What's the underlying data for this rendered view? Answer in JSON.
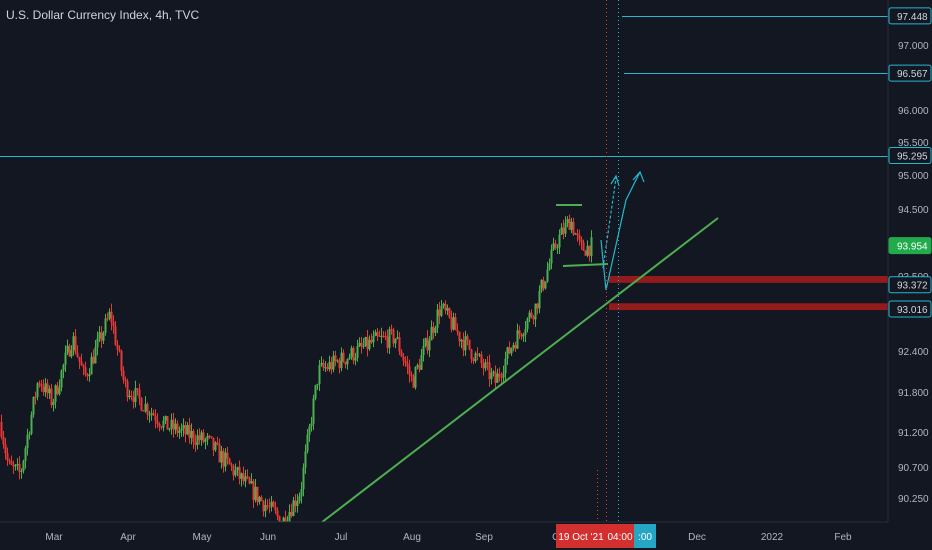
{
  "header": {
    "title": "U.S. Dollar Currency Index, 4h, TVC"
  },
  "colors": {
    "background": "#131722",
    "up": "#26a69a",
    "down": "#ef5350",
    "candle_up": "#4caf50",
    "candle_down": "#e53935",
    "drawing_cyan": "#22b8cf",
    "trendline_green": "#4caf50",
    "zone_red": "#b71c1c",
    "axis_text": "#b2b5be",
    "price_tag": "#089981"
  },
  "chart_data": {
    "type": "candlestick",
    "title": "U.S. Dollar Currency Index, 4h, TVC",
    "y_ticks": [
      "97.000",
      "96.000",
      "95.500",
      "95.000",
      "94.500",
      "93.500",
      "92.400",
      "91.800",
      "91.200",
      "90.700",
      "90.250"
    ],
    "y_tick_values": [
      97.0,
      96.0,
      95.5,
      95.0,
      94.5,
      93.5,
      92.4,
      91.8,
      91.2,
      90.7,
      90.25
    ],
    "x_ticks": [
      "Mar",
      "Apr",
      "May",
      "Jun",
      "Jul",
      "Aug",
      "Sep",
      "O",
      "Dec",
      "2022",
      "Feb"
    ],
    "price_path": [
      {
        "m": "Feb",
        "p": 91.35
      },
      {
        "m": "Feb",
        "p": 90.7
      },
      {
        "m": "Mar",
        "p": 90.6
      },
      {
        "m": "Mar",
        "p": 92.0
      },
      {
        "m": "Mar",
        "p": 91.65
      },
      {
        "m": "Mar",
        "p": 92.6
      },
      {
        "m": "Mar",
        "p": 92.0
      },
      {
        "m": "Apr",
        "p": 92.95
      },
      {
        "m": "Apr",
        "p": 91.9
      },
      {
        "m": "Apr",
        "p": 91.3
      },
      {
        "m": "May",
        "p": 91.05
      },
      {
        "m": "May",
        "p": 90.6
      },
      {
        "m": "May",
        "p": 90.2
      },
      {
        "m": "Jun",
        "p": 89.9
      },
      {
        "m": "Jun",
        "p": 90.35
      },
      {
        "m": "Jun",
        "p": 92.1
      },
      {
        "m": "Jul",
        "p": 92.3
      },
      {
        "m": "Jul",
        "p": 92.55
      },
      {
        "m": "Jul",
        "p": 92.6
      },
      {
        "m": "Aug",
        "p": 91.95
      },
      {
        "m": "Aug",
        "p": 93.05
      },
      {
        "m": "Aug",
        "p": 92.6
      },
      {
        "m": "Sep",
        "p": 91.95
      },
      {
        "m": "Sep",
        "p": 92.5
      },
      {
        "m": "Sep",
        "p": 93.05
      },
      {
        "m": "O",
        "p": 94.0
      },
      {
        "m": "O",
        "p": 94.35
      },
      {
        "m": "O",
        "p": 93.9
      },
      {
        "m": "O",
        "p": 93.95
      }
    ],
    "horizontal_lines": [
      97.448,
      96.567,
      95.295
    ],
    "price_labels": [
      {
        "text": "97.448",
        "value": 97.448,
        "kind": "level"
      },
      {
        "text": "96.567",
        "value": 96.567,
        "kind": "level"
      },
      {
        "text": "95.295",
        "value": 95.295,
        "kind": "level"
      },
      {
        "text": "93.954",
        "value": 93.954,
        "kind": "last"
      },
      {
        "text": "93.372",
        "value": 93.372,
        "kind": "zone"
      },
      {
        "text": "93.016",
        "value": 93.016,
        "kind": "zone"
      }
    ],
    "zones": [
      {
        "from": 93.4,
        "to": 93.5
      },
      {
        "from": 93.0,
        "to": 93.1
      }
    ],
    "trendline": {
      "from": {
        "m": "Jun",
        "p": 89.9
      },
      "to": {
        "m": "Dec",
        "p": 94.35
      }
    },
    "date_label": "19 Oct '21",
    "time_label": "04:00",
    "time_label_partial": ":00"
  }
}
